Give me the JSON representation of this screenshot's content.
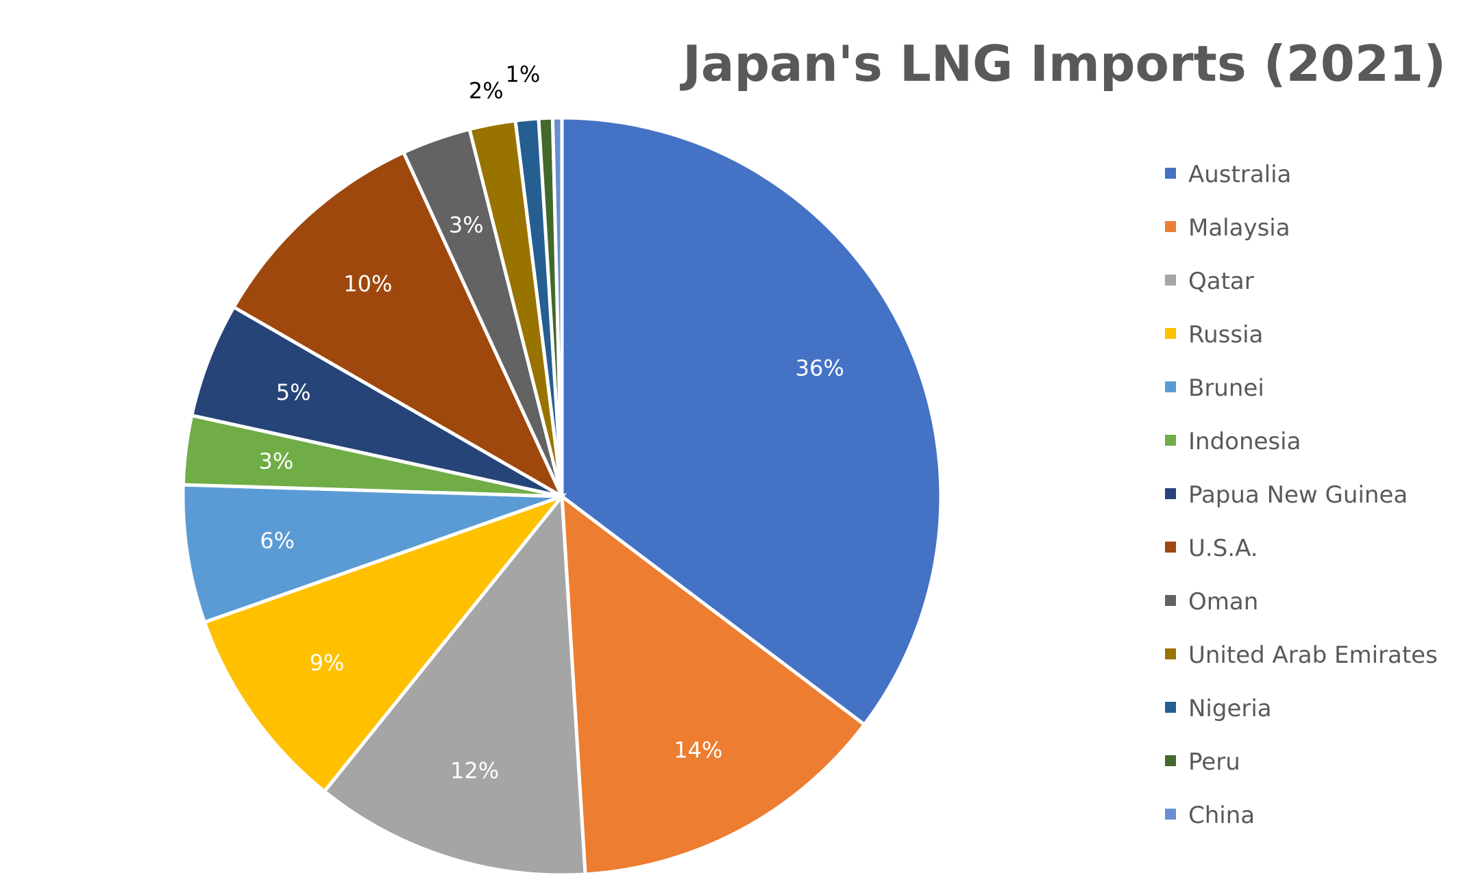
{
  "chart_data": {
    "type": "pie",
    "title": "Japan's LNG Imports (2021)",
    "categories": [
      "Australia",
      "Malaysia",
      "Qatar",
      "Russia",
      "Brunei",
      "Indonesia",
      "Papua New Guinea",
      "U.S.A.",
      "Oman",
      "United Arab Emirates",
      "Nigeria",
      "Peru",
      "China"
    ],
    "values": [
      36,
      14,
      12,
      9,
      6,
      3,
      5,
      10,
      3,
      2,
      1,
      0.6,
      0.4
    ],
    "labels": [
      "36%",
      "14%",
      "12%",
      "9%",
      "6%",
      "3%",
      "5%",
      "10%",
      "3%",
      "2%",
      "1%",
      "",
      ""
    ],
    "colors": [
      "#4472C4",
      "#ED7D31",
      "#A5A5A5",
      "#FFC000",
      "#5B9BD5",
      "#70AD47",
      "#264478",
      "#9E480E",
      "#636363",
      "#997300",
      "#255E91",
      "#43682B",
      "#698ED0"
    ],
    "legend_position": "right"
  }
}
